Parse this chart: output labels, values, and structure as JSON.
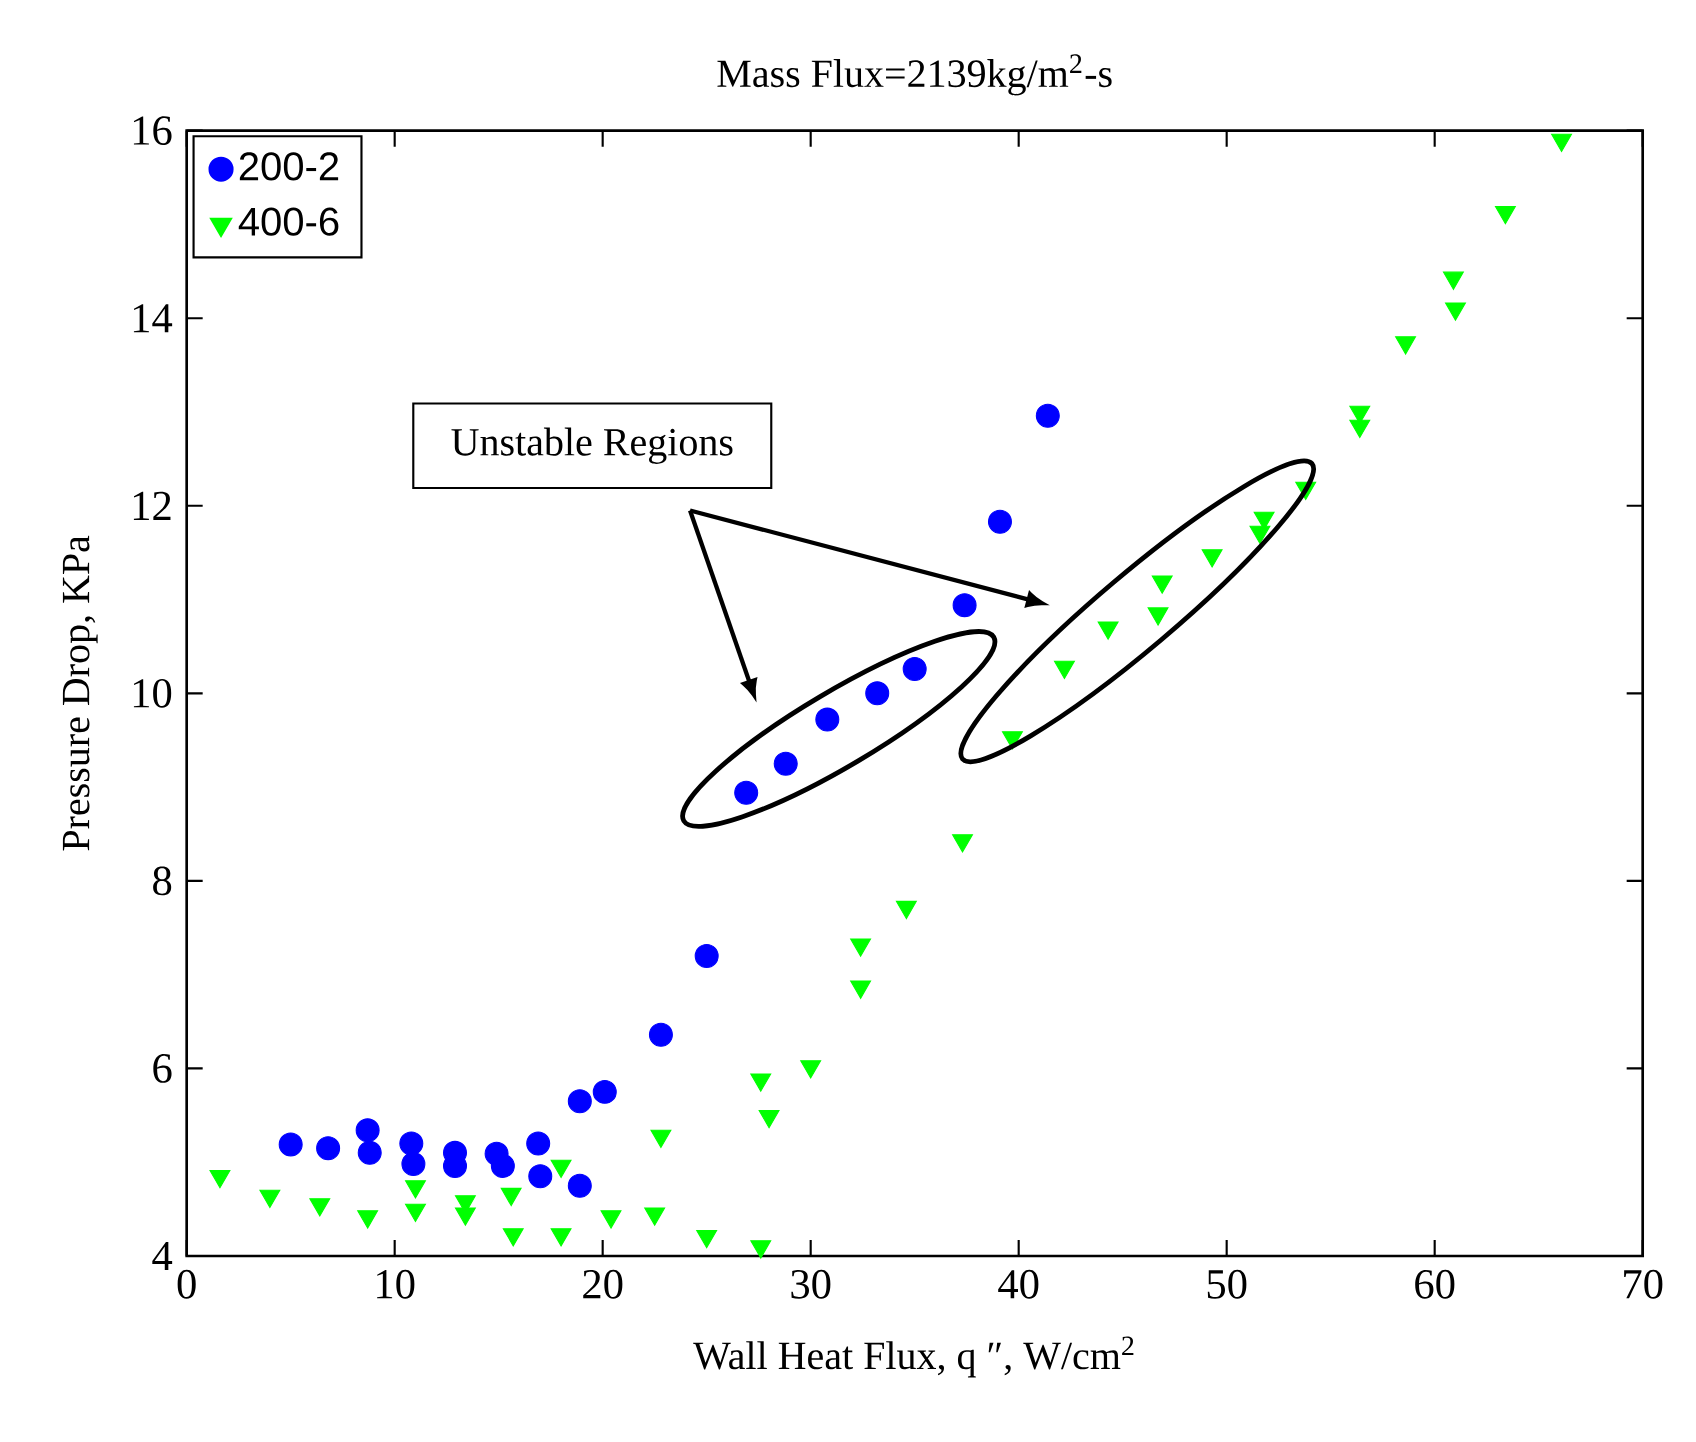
{
  "chart_data": {
    "type": "scatter",
    "title": "Mass Flux=2139kg/m$^{2}$-s",
    "xlabel": "Wall Heat Flux, q ″, W/cm$^{2}$",
    "ylabel": "Pressure Drop, KPa",
    "xlim": [
      0,
      70
    ],
    "ylim": [
      4,
      16
    ],
    "xticks": [
      0,
      10,
      20,
      30,
      40,
      50,
      60,
      70
    ],
    "yticks": [
      4,
      6,
      8,
      10,
      12,
      14,
      16
    ],
    "grid": false,
    "legend": "top left",
    "annotations": [
      "Unstable Regions"
    ],
    "series": [
      {
        "name": "200-2",
        "color": "#0000ff",
        "marker": "circle",
        "x": [
          5.0,
          6.8,
          8.7,
          8.8,
          10.8,
          10.9,
          12.9,
          12.9,
          14.9,
          15.2,
          16.9,
          17.0,
          18.9,
          18.9,
          20.1,
          22.8,
          25.0,
          26.9,
          28.8,
          30.8,
          33.2,
          35.0,
          37.4,
          39.1,
          41.4
        ],
        "values": [
          5.19,
          5.15,
          5.34,
          5.1,
          5.2,
          4.98,
          5.1,
          4.96,
          5.09,
          4.96,
          5.2,
          4.85,
          4.75,
          5.65,
          5.75,
          6.36,
          7.2,
          8.94,
          9.25,
          9.72,
          10.0,
          10.26,
          10.94,
          11.83,
          12.96
        ]
      },
      {
        "name": "400-6",
        "color": "#00ff00",
        "marker": "triangle",
        "x": [
          1.6,
          4.0,
          6.4,
          8.7,
          11.0,
          11.0,
          13.4,
          13.4,
          15.6,
          15.7,
          18.0,
          18.0,
          20.4,
          22.5,
          22.8,
          25.0,
          27.6,
          27.6,
          28.0,
          30.0,
          32.4,
          32.4,
          34.6,
          37.3,
          39.7,
          42.2,
          44.3,
          46.7,
          46.9,
          49.3,
          51.6,
          51.8,
          53.8,
          56.4,
          56.4,
          58.6,
          60.9,
          61.0,
          63.4,
          66.1
        ],
        "values": [
          4.85,
          4.64,
          4.55,
          4.42,
          4.74,
          4.49,
          4.58,
          4.45,
          4.66,
          4.23,
          4.96,
          4.23,
          4.42,
          4.45,
          5.28,
          4.21,
          4.1,
          5.88,
          5.49,
          6.02,
          7.32,
          6.87,
          7.72,
          8.43,
          9.53,
          10.28,
          10.7,
          10.85,
          11.19,
          11.47,
          11.72,
          11.87,
          12.19,
          13.0,
          12.85,
          13.74,
          14.43,
          14.1,
          15.13,
          15.9
        ]
      }
    ]
  }
}
